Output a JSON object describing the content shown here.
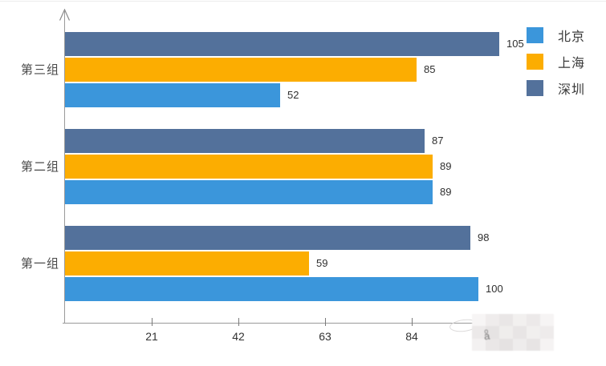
{
  "chart_data": {
    "type": "bar",
    "orientation": "horizontal",
    "categories_top_to_bottom": [
      "第三组",
      "第二组",
      "第一组"
    ],
    "series": [
      {
        "name": "北京",
        "color": "#3B96DB",
        "values": [
          52,
          89,
          100
        ]
      },
      {
        "name": "上海",
        "color": "#FCAD01",
        "values": [
          85,
          89,
          59
        ]
      },
      {
        "name": "深圳",
        "color": "#53719B",
        "values": [
          105,
          87,
          98
        ]
      }
    ],
    "bar_order_top_to_bottom": [
      "深圳",
      "上海",
      "北京"
    ],
    "x_axis": {
      "ticks": [
        21,
        42,
        63,
        84
      ],
      "range": [
        0,
        105
      ]
    },
    "legend": {
      "position": "top-right",
      "entries": [
        "北京",
        "上海",
        "深圳"
      ]
    },
    "value_labels": true,
    "grid": false
  },
  "watermark": {
    "present": true,
    "text_legible": false
  }
}
